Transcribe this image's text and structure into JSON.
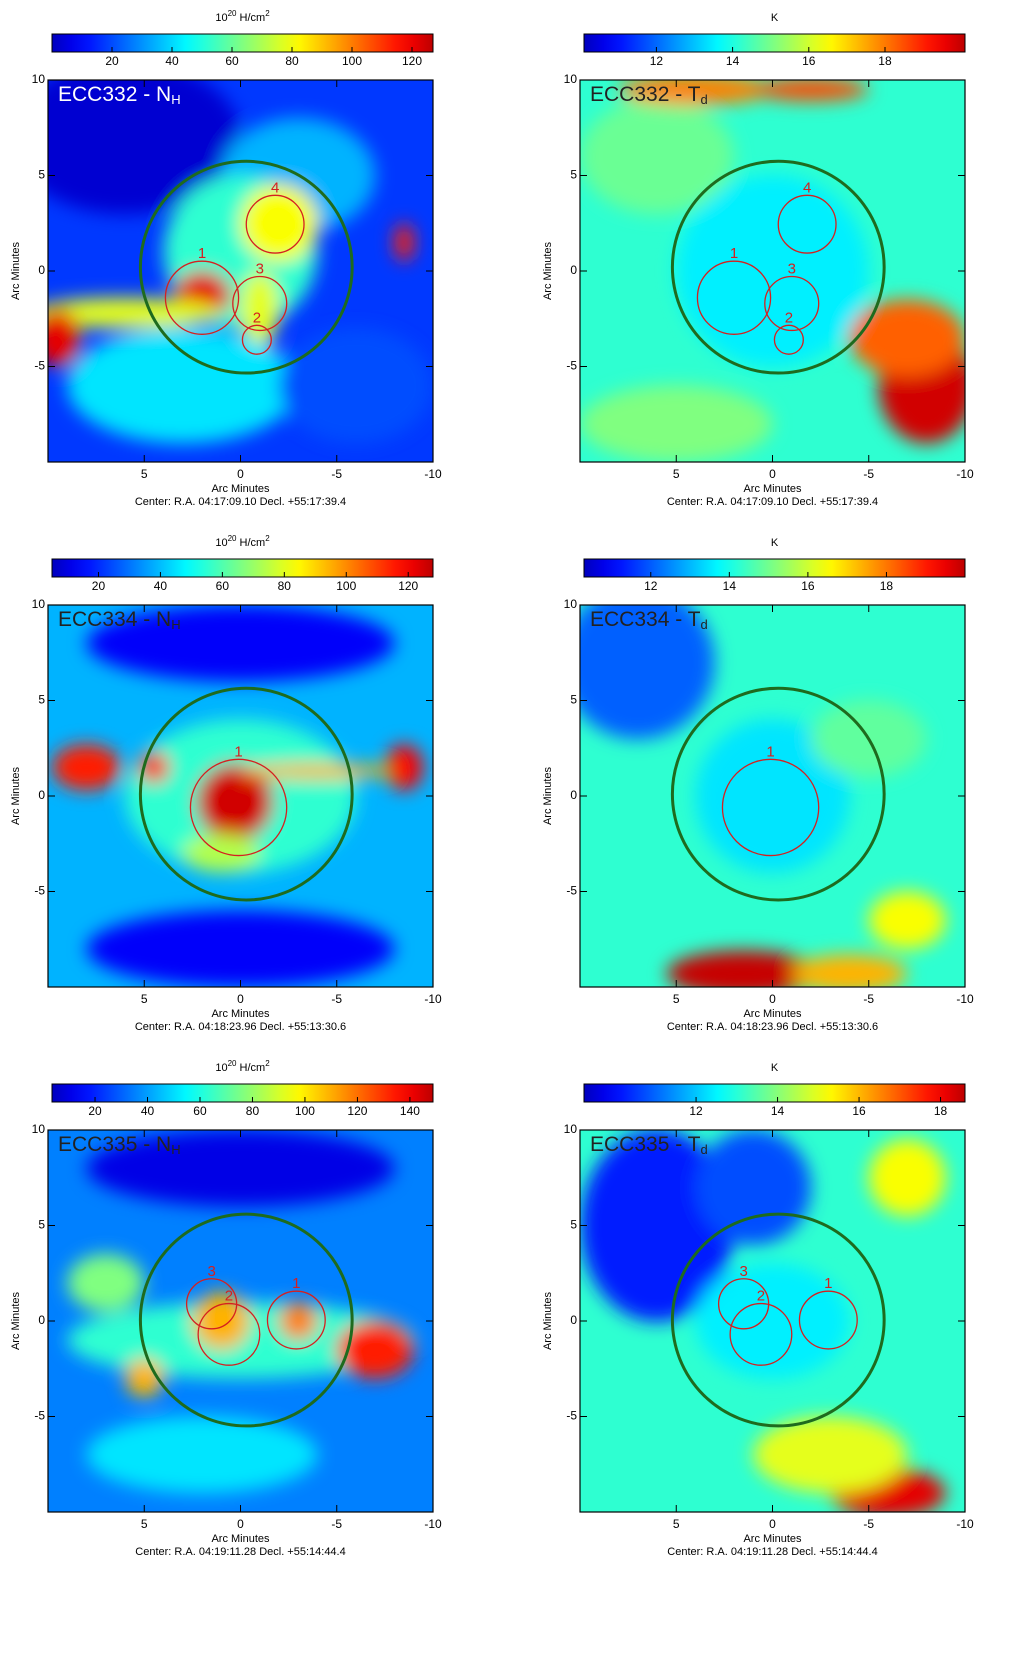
{
  "chart_data": [
    {
      "type": "heatmap",
      "colormap": "jet",
      "title": "ECC332 - N",
      "title_subscript": "H",
      "colorbar_label": {
        "base": "10",
        "exp": "20",
        "unit": "H/cm",
        "unit_exp": "2"
      },
      "clim": [
        0,
        127
      ],
      "colorbar_ticks": [
        20,
        40,
        60,
        80,
        100,
        120
      ],
      "xlabel": "Arc Minutes",
      "ylabel": "Arc Minutes",
      "xlim": [
        10,
        -10
      ],
      "ylim": [
        -10,
        10
      ],
      "xticks": [
        5,
        0,
        -5,
        -10
      ],
      "yticks": [
        10,
        5,
        0,
        -5
      ],
      "center_text": "Center:  R.A. 04:17:09.10   Decl. +55:17:39.4",
      "circles": [
        {
          "x": -0.3,
          "y": 0.2,
          "r": 5.5,
          "color": "#1e6b1e"
        },
        {
          "label": "1",
          "x": 2.0,
          "y": -1.4,
          "r": 1.9,
          "color": "#d42020"
        },
        {
          "label": "2",
          "x": -0.85,
          "y": -3.6,
          "r": 0.75,
          "color": "#d42020"
        },
        {
          "label": "3",
          "x": -1.0,
          "y": -1.7,
          "r": 1.4,
          "color": "#d42020"
        },
        {
          "label": "4",
          "x": -1.8,
          "y": 2.45,
          "r": 1.5,
          "color": "#d42020"
        }
      ]
    },
    {
      "type": "heatmap",
      "colormap": "jet",
      "title": "ECC332 - T",
      "title_subscript": "d",
      "colorbar_label": {
        "base": "K"
      },
      "clim": [
        10.1,
        20.1
      ],
      "colorbar_ticks": [
        12,
        14,
        16,
        18
      ],
      "xlabel": "Arc Minutes",
      "ylabel": "Arc Minutes",
      "xlim": [
        10,
        -10
      ],
      "ylim": [
        -10,
        10
      ],
      "xticks": [
        5,
        0,
        -5,
        -10
      ],
      "yticks": [
        10,
        5,
        0,
        -5
      ],
      "center_text": "Center:  R.A. 04:17:09.10   Decl. +55:17:39.4",
      "circles": [
        {
          "x": -0.3,
          "y": 0.2,
          "r": 5.5,
          "color": "#1e6b1e"
        },
        {
          "label": "1",
          "x": 2.0,
          "y": -1.4,
          "r": 1.9,
          "color": "#d42020"
        },
        {
          "label": "2",
          "x": -0.85,
          "y": -3.6,
          "r": 0.75,
          "color": "#d42020"
        },
        {
          "label": "3",
          "x": -1.0,
          "y": -1.7,
          "r": 1.4,
          "color": "#d42020"
        },
        {
          "label": "4",
          "x": -1.8,
          "y": 2.45,
          "r": 1.5,
          "color": "#d42020"
        }
      ]
    },
    {
      "type": "heatmap",
      "colormap": "jet",
      "title": "ECC334 - N",
      "title_subscript": "H",
      "colorbar_label": {
        "base": "10",
        "exp": "20",
        "unit": "H/cm",
        "unit_exp": "2"
      },
      "clim": [
        5,
        128
      ],
      "colorbar_ticks": [
        20,
        40,
        60,
        80,
        100,
        120
      ],
      "xlabel": "Arc Minutes",
      "ylabel": "Arc Minutes",
      "xlim": [
        10,
        -10
      ],
      "ylim": [
        -10,
        10
      ],
      "xticks": [
        5,
        0,
        -5,
        -10
      ],
      "yticks": [
        10,
        5,
        0,
        -5
      ],
      "center_text": "Center:  R.A. 04:18:23.96   Decl. +55:13:30.6",
      "circles": [
        {
          "x": -0.3,
          "y": 0.1,
          "r": 5.5,
          "color": "#1e6b1e"
        },
        {
          "label": "1",
          "x": 0.1,
          "y": -0.6,
          "r": 2.5,
          "color": "#d42020"
        }
      ]
    },
    {
      "type": "heatmap",
      "colormap": "jet",
      "title": "ECC334 - T",
      "title_subscript": "d",
      "colorbar_label": {
        "base": "K"
      },
      "clim": [
        10.3,
        20.0
      ],
      "colorbar_ticks": [
        12,
        14,
        16,
        18
      ],
      "xlabel": "Arc Minutes",
      "ylabel": "Arc Minutes",
      "xlim": [
        10,
        -10
      ],
      "ylim": [
        -10,
        10
      ],
      "xticks": [
        5,
        0,
        -5,
        -10
      ],
      "yticks": [
        10,
        5,
        0,
        -5
      ],
      "center_text": "Center:  R.A. 04:18:23.96   Decl. +55:13:30.6",
      "circles": [
        {
          "x": -0.3,
          "y": 0.1,
          "r": 5.5,
          "color": "#1e6b1e"
        },
        {
          "label": "1",
          "x": 0.1,
          "y": -0.6,
          "r": 2.5,
          "color": "#d42020"
        }
      ]
    },
    {
      "type": "heatmap",
      "colormap": "jet",
      "title": "ECC335 - N",
      "title_subscript": "H",
      "colorbar_label": {
        "base": "10",
        "exp": "20",
        "unit": "H/cm",
        "unit_exp": "2"
      },
      "clim": [
        3.6,
        148.8
      ],
      "colorbar_ticks": [
        20,
        40,
        60,
        80,
        100,
        120,
        140
      ],
      "xlabel": "Arc Minutes",
      "ylabel": "Arc Minutes",
      "xlim": [
        10,
        -10
      ],
      "ylim": [
        -10,
        10
      ],
      "xticks": [
        5,
        0,
        -5,
        -10
      ],
      "yticks": [
        10,
        5,
        0,
        -5
      ],
      "center_text": "Center:  R.A. 04:19:11.28   Decl. +55:14:44.4",
      "circles": [
        {
          "x": -0.3,
          "y": 0.05,
          "r": 5.5,
          "color": "#1e6b1e"
        },
        {
          "label": "1",
          "x": -2.9,
          "y": 0.05,
          "r": 1.5,
          "color": "#d42020"
        },
        {
          "label": "2",
          "x": 0.6,
          "y": -0.7,
          "r": 1.6,
          "color": "#d42020"
        },
        {
          "label": "3",
          "x": 1.5,
          "y": 0.9,
          "r": 1.3,
          "color": "#d42020"
        }
      ]
    },
    {
      "type": "heatmap",
      "colormap": "jet",
      "title": "ECC335 - T",
      "title_subscript": "d",
      "colorbar_label": {
        "base": "K"
      },
      "clim": [
        9.25,
        18.6
      ],
      "colorbar_ticks": [
        12,
        14,
        16,
        18
      ],
      "xlabel": "Arc Minutes",
      "ylabel": "Arc Minutes",
      "xlim": [
        10,
        -10
      ],
      "ylim": [
        -10,
        10
      ],
      "xticks": [
        5,
        0,
        -5,
        -10
      ],
      "yticks": [
        10,
        5,
        0,
        -5
      ],
      "center_text": "Center:  R.A. 04:19:11.28   Decl. +55:14:44.4",
      "circles": [
        {
          "x": -0.3,
          "y": 0.05,
          "r": 5.5,
          "color": "#1e6b1e"
        },
        {
          "label": "1",
          "x": -2.9,
          "y": 0.05,
          "r": 1.5,
          "color": "#d42020"
        },
        {
          "label": "2",
          "x": 0.6,
          "y": -0.7,
          "r": 1.6,
          "color": "#d42020"
        },
        {
          "label": "3",
          "x": 1.5,
          "y": 0.9,
          "r": 1.3,
          "color": "#d42020"
        }
      ]
    }
  ]
}
